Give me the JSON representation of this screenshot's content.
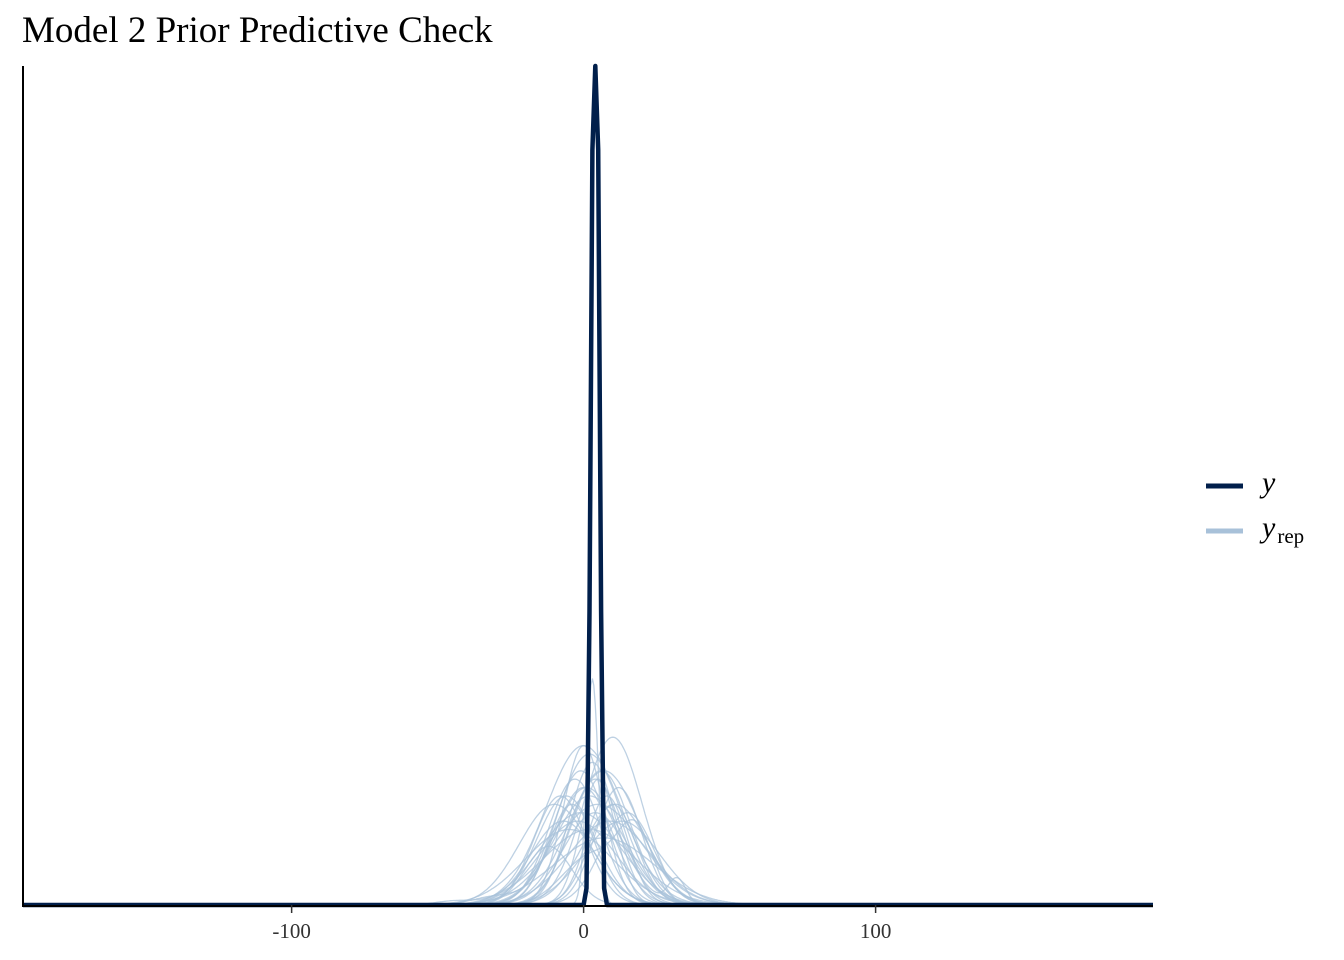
{
  "chart_data": {
    "type": "line",
    "title": "Model 2 Prior Predictive Check",
    "xlabel": "",
    "ylabel": "",
    "xlim": [
      -192,
      195
    ],
    "ylim": [
      0,
      1
    ],
    "x_ticks": [
      -100,
      0,
      100
    ],
    "x_tick_labels": [
      "-100",
      "0",
      "100"
    ],
    "y_ticks_visible": false,
    "grid": false,
    "legend_position": "right",
    "legend": [
      {
        "symbol": "y",
        "subscript": "",
        "color": "#011f4b"
      },
      {
        "symbol": "y",
        "subscript": "rep",
        "color": "#a8c1d9"
      }
    ],
    "series": [
      {
        "name": "y",
        "kind": "density",
        "color": "#011f4b",
        "x": [
          -192,
          0,
          1,
          2,
          3,
          4,
          5,
          6,
          7,
          8,
          195
        ],
        "y": [
          0,
          0,
          0.02,
          0.35,
          0.9,
          1.0,
          0.9,
          0.35,
          0.02,
          0,
          0
        ]
      },
      {
        "name": "y_rep",
        "kind": "density-draws",
        "color": "#a8c1d9",
        "draws": [
          {
            "components": [
              [
                0,
                13,
                0.19
              ]
            ]
          },
          {
            "components": [
              [
                3,
                2,
                0.27
              ]
            ]
          },
          {
            "components": [
              [
                2,
                11,
                0.18
              ]
            ]
          },
          {
            "components": [
              [
                -3,
                9,
                0.15
              ]
            ]
          },
          {
            "components": [
              [
                7,
                12,
                0.16
              ]
            ]
          },
          {
            "components": [
              [
                12,
                8,
                0.14
              ]
            ]
          },
          {
            "components": [
              [
                -6,
                10,
                0.13
              ]
            ]
          },
          {
            "components": [
              [
                5,
                15,
                0.12
              ]
            ]
          },
          {
            "components": [
              [
                0,
                7,
                0.19
              ]
            ]
          },
          {
            "components": [
              [
                10,
                10,
                0.2
              ]
            ]
          },
          {
            "components": [
              [
                -10,
                12,
                0.12
              ]
            ]
          },
          {
            "components": [
              [
                4,
                9,
                0.15
              ]
            ]
          },
          {
            "components": [
              [
                -1,
                14,
                0.11
              ]
            ]
          },
          {
            "components": [
              [
                8,
                7,
                0.13
              ]
            ]
          },
          {
            "components": [
              [
                1,
                11,
                0.14
              ],
              [
                32,
                3,
                0.03
              ]
            ]
          },
          {
            "components": [
              [
                -4,
                8,
                0.12
              ]
            ]
          },
          {
            "components": [
              [
                6,
                10,
                0.16
              ]
            ]
          },
          {
            "components": [
              [
                -2,
                13,
                0.1
              ]
            ]
          },
          {
            "components": [
              [
                15,
                9,
                0.11
              ]
            ]
          },
          {
            "components": [
              [
                2,
                16,
                0.09
              ],
              [
                -45,
                6,
                0.004
              ]
            ]
          },
          {
            "components": [
              [
                -8,
                9,
                0.13
              ]
            ]
          },
          {
            "components": [
              [
                9,
                14,
                0.1
              ]
            ]
          },
          {
            "components": [
              [
                3,
                8,
                0.17
              ]
            ]
          },
          {
            "components": [
              [
                -5,
                15,
                0.09
              ]
            ]
          },
          {
            "components": [
              [
                11,
                11,
                0.12
              ]
            ]
          },
          {
            "components": [
              [
                0,
                10,
                0.14
              ],
              [
                -30,
                8,
                0.01
              ]
            ]
          },
          {
            "components": [
              [
                13,
                13,
                0.1
              ]
            ]
          },
          {
            "components": [
              [
                -7,
                11,
                0.1
              ]
            ]
          },
          {
            "components": [
              [
                5,
                6,
                0.15
              ]
            ]
          },
          {
            "components": [
              [
                2,
                12,
                0.13
              ]
            ]
          },
          {
            "components": [
              [
                18,
                6,
                0.08
              ],
              [
                3,
                10,
                0.06
              ]
            ]
          },
          {
            "components": [
              [
                -1,
                9,
                0.16
              ]
            ]
          },
          {
            "components": [
              [
                7,
                17,
                0.08
              ]
            ]
          },
          {
            "components": [
              [
                4,
                11,
                0.11
              ]
            ]
          },
          {
            "components": [
              [
                -12,
                8,
                0.07
              ]
            ]
          },
          {
            "components": [
              [
                10,
                8,
                0.12
              ]
            ]
          }
        ]
      }
    ]
  }
}
